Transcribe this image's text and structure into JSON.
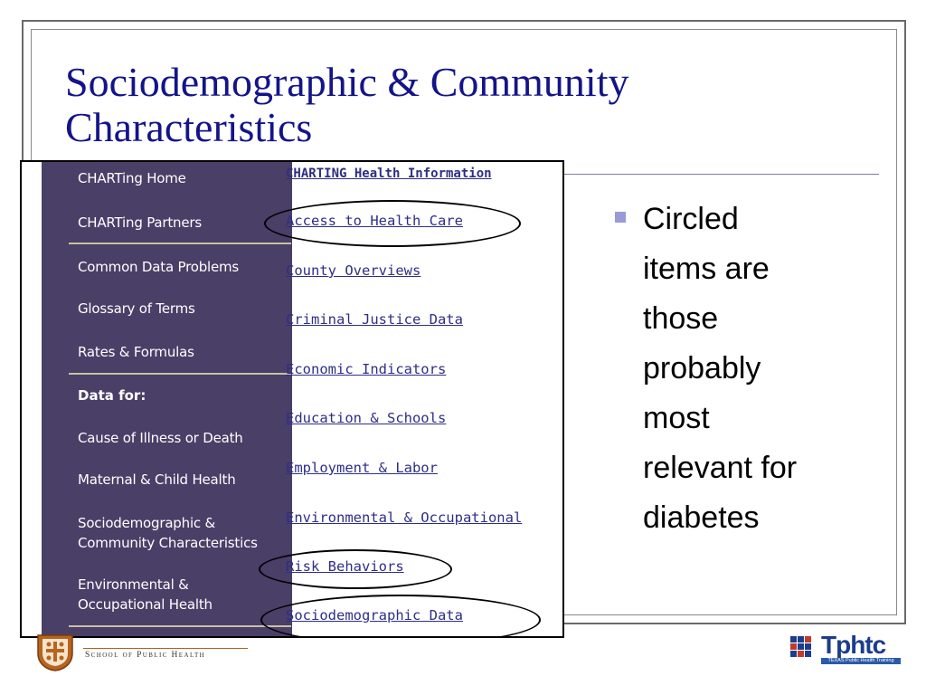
{
  "slide": {
    "title": "Sociodemographic & Community Characteristics",
    "bullet": "Circled items are those probably most relevant for diabetes"
  },
  "sidebar": {
    "items_top": [
      {
        "label": "CHARTing Home"
      },
      {
        "label": "CHARTing Partners"
      },
      {
        "label": "Common Data Problems"
      },
      {
        "label": "Glossary of Terms"
      },
      {
        "label": "Rates & Formulas"
      }
    ],
    "data_heading": "Data for:",
    "items_data": [
      {
        "label": "Cause of Illness or Death"
      },
      {
        "label": "Maternal & Child Health"
      },
      {
        "label": "Sociodemographic & Community Characteristics"
      },
      {
        "label": "Environmental & Occupational Health"
      }
    ]
  },
  "content": {
    "heading": "CHARTING Health Information",
    "links": [
      {
        "label": "Access to Health Care",
        "circled": true
      },
      {
        "label": "County Overviews",
        "circled": false
      },
      {
        "label": "Criminal Justice Data",
        "circled": false
      },
      {
        "label": "Economic Indicators",
        "circled": false
      },
      {
        "label": "Education & Schools",
        "circled": false
      },
      {
        "label": "Employment & Labor",
        "circled": false
      },
      {
        "label": "Environmental & Occupational",
        "circled": false
      },
      {
        "label": "Risk Behaviors",
        "circled": true
      },
      {
        "label": "Sociodemographic Data",
        "circled": true
      }
    ]
  },
  "footer": {
    "school": "School of Public Health",
    "logo_right": "Tphtc",
    "logo_right_sub": "TEXAS Public Health Training Center"
  },
  "colors": {
    "title": "#14148a",
    "sidebar_bg": "#4a3f67",
    "link": "#2e2e88",
    "bullet": "#9a9ad8"
  }
}
